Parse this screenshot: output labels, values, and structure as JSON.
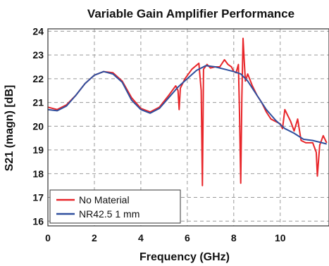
{
  "chart_data": {
    "type": "line",
    "title": "Variable Gain Amplifier Performance",
    "xlabel": "Frequency (GHz)",
    "ylabel": "S21 (magn) [dB]",
    "xlim": [
      0,
      12.1
    ],
    "ylim": [
      15.8,
      24.1
    ],
    "xticks": [
      0,
      2,
      4,
      6,
      8,
      10
    ],
    "yticks": [
      16,
      17,
      18,
      19,
      20,
      21,
      22,
      23,
      24
    ],
    "grid": true,
    "grid_style": "dashed",
    "legend_position": "bottom-left",
    "series": [
      {
        "name": "No Material",
        "color": "#e8262a",
        "points": [
          [
            0,
            20.8
          ],
          [
            0.4,
            20.7
          ],
          [
            0.8,
            20.9
          ],
          [
            1.2,
            21.3
          ],
          [
            1.6,
            21.8
          ],
          [
            2.0,
            22.15
          ],
          [
            2.4,
            22.3
          ],
          [
            2.8,
            22.25
          ],
          [
            3.2,
            21.9
          ],
          [
            3.6,
            21.2
          ],
          [
            4.0,
            20.75
          ],
          [
            4.4,
            20.6
          ],
          [
            4.8,
            20.8
          ],
          [
            5.2,
            21.3
          ],
          [
            5.5,
            21.7
          ],
          [
            5.6,
            21.5
          ],
          [
            5.65,
            20.7
          ],
          [
            5.7,
            21.6
          ],
          [
            5.9,
            22.0
          ],
          [
            6.2,
            22.4
          ],
          [
            6.5,
            22.65
          ],
          [
            6.6,
            21.5
          ],
          [
            6.65,
            17.5
          ],
          [
            6.7,
            22.4
          ],
          [
            6.85,
            22.6
          ],
          [
            7.0,
            22.45
          ],
          [
            7.2,
            22.5
          ],
          [
            7.4,
            22.5
          ],
          [
            7.6,
            22.8
          ],
          [
            7.75,
            22.6
          ],
          [
            7.9,
            22.5
          ],
          [
            8.0,
            22.3
          ],
          [
            8.1,
            22.25
          ],
          [
            8.2,
            22.6
          ],
          [
            8.25,
            20.5
          ],
          [
            8.3,
            17.6
          ],
          [
            8.35,
            21.2
          ],
          [
            8.4,
            23.7
          ],
          [
            8.45,
            22.8
          ],
          [
            8.5,
            21.9
          ],
          [
            8.6,
            22.2
          ],
          [
            8.8,
            21.7
          ],
          [
            9.0,
            21.3
          ],
          [
            9.2,
            21.0
          ],
          [
            9.4,
            20.6
          ],
          [
            9.6,
            20.3
          ],
          [
            9.8,
            20.2
          ],
          [
            10.0,
            20.1
          ],
          [
            10.1,
            19.9
          ],
          [
            10.2,
            20.7
          ],
          [
            10.3,
            20.5
          ],
          [
            10.45,
            20.2
          ],
          [
            10.6,
            19.8
          ],
          [
            10.75,
            20.3
          ],
          [
            10.9,
            19.4
          ],
          [
            11.1,
            19.3
          ],
          [
            11.4,
            19.3
          ],
          [
            11.55,
            18.9
          ],
          [
            11.6,
            17.9
          ],
          [
            11.7,
            19.2
          ],
          [
            11.85,
            19.6
          ],
          [
            12.0,
            19.3
          ]
        ]
      },
      {
        "name": "NR42.5 1 mm",
        "color": "#2f4f9e",
        "points": [
          [
            0,
            20.7
          ],
          [
            0.4,
            20.65
          ],
          [
            0.8,
            20.85
          ],
          [
            1.2,
            21.3
          ],
          [
            1.6,
            21.8
          ],
          [
            2.0,
            22.15
          ],
          [
            2.4,
            22.3
          ],
          [
            2.8,
            22.2
          ],
          [
            3.2,
            21.85
          ],
          [
            3.6,
            21.1
          ],
          [
            4.0,
            20.7
          ],
          [
            4.4,
            20.55
          ],
          [
            4.8,
            20.75
          ],
          [
            5.2,
            21.2
          ],
          [
            5.6,
            21.65
          ],
          [
            6.0,
            22.0
          ],
          [
            6.4,
            22.35
          ],
          [
            6.8,
            22.55
          ],
          [
            7.2,
            22.5
          ],
          [
            7.6,
            22.4
          ],
          [
            8.0,
            22.3
          ],
          [
            8.3,
            22.2
          ],
          [
            8.6,
            21.9
          ],
          [
            9.0,
            21.3
          ],
          [
            9.4,
            20.7
          ],
          [
            9.8,
            20.25
          ],
          [
            10.2,
            19.9
          ],
          [
            10.6,
            19.7
          ],
          [
            11.0,
            19.45
          ],
          [
            11.4,
            19.4
          ],
          [
            11.8,
            19.3
          ],
          [
            12.0,
            19.25
          ]
        ]
      }
    ]
  }
}
